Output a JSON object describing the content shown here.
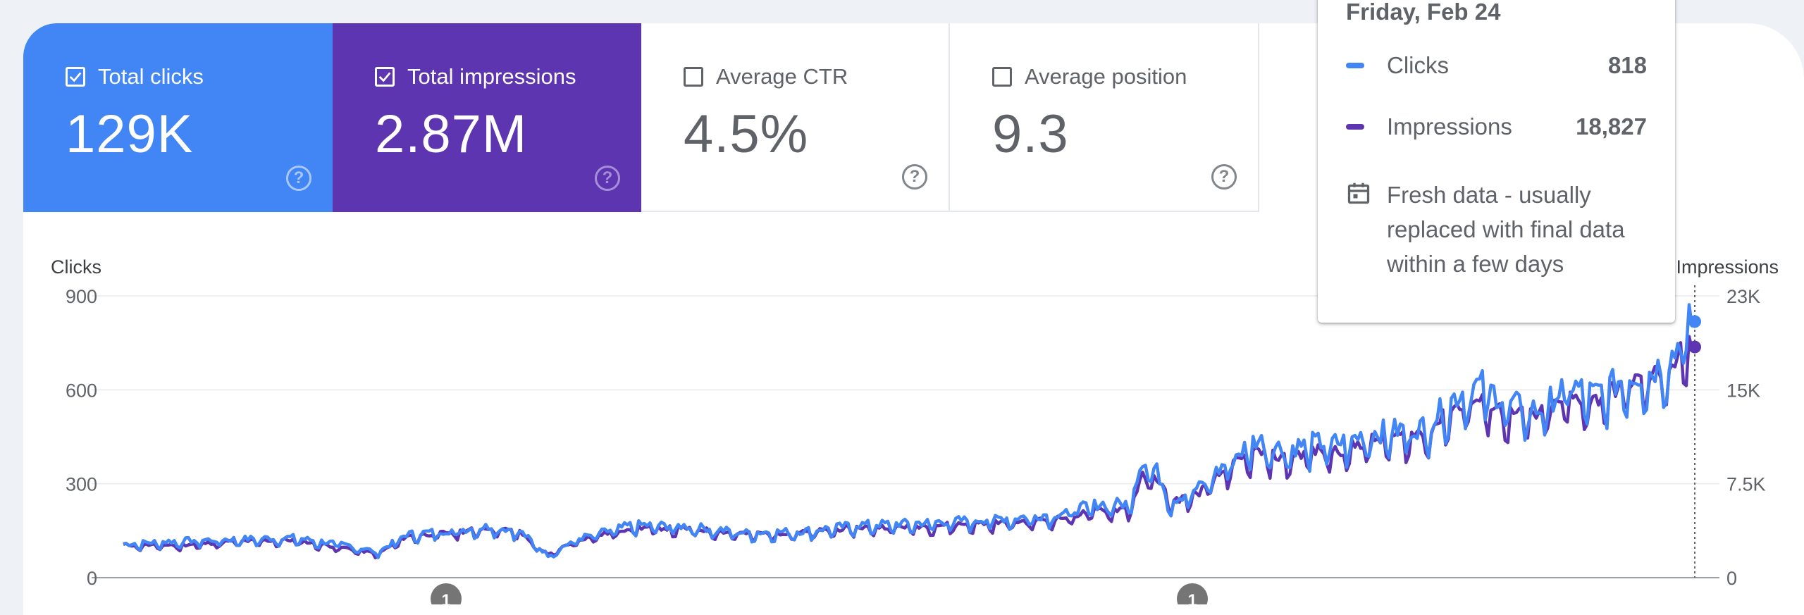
{
  "cards": [
    {
      "label": "Total clicks",
      "value": "129K",
      "checked": true,
      "color": "#4285f4"
    },
    {
      "label": "Total impressions",
      "value": "2.87M",
      "checked": true,
      "color": "#5e35b1"
    },
    {
      "label": "Average CTR",
      "value": "4.5%",
      "checked": false
    },
    {
      "label": "Average position",
      "value": "9.3",
      "checked": false
    }
  ],
  "help_icon": "?",
  "chart_data": {
    "type": "line",
    "left_axis": {
      "title": "Clicks",
      "ticks": [
        "900",
        "600",
        "300",
        "0"
      ],
      "range": [
        0,
        900
      ]
    },
    "right_axis": {
      "title": "Impressions",
      "ticks": [
        "23K",
        "15K",
        "7.5K",
        "0"
      ],
      "range": [
        0,
        23000
      ]
    },
    "grid": true,
    "series": [
      {
        "name": "Clicks",
        "color": "#4285f4",
        "axis": "left",
        "keypoints": [
          [
            0,
            105
          ],
          [
            20,
            115
          ],
          [
            40,
            120
          ],
          [
            60,
            125
          ],
          [
            80,
            100
          ],
          [
            90,
            80
          ],
          [
            100,
            135
          ],
          [
            120,
            150
          ],
          [
            130,
            160
          ],
          [
            140,
            145
          ],
          [
            150,
            70
          ],
          [
            160,
            120
          ],
          [
            180,
            165
          ],
          [
            200,
            160
          ],
          [
            220,
            140
          ],
          [
            240,
            145
          ],
          [
            260,
            165
          ],
          [
            280,
            170
          ],
          [
            300,
            180
          ],
          [
            320,
            190
          ],
          [
            330,
            200
          ],
          [
            345,
            230
          ],
          [
            355,
            230
          ],
          [
            360,
            370
          ],
          [
            365,
            330
          ],
          [
            370,
            240
          ],
          [
            380,
            280
          ],
          [
            390,
            360
          ],
          [
            400,
            430
          ],
          [
            410,
            400
          ],
          [
            420,
            420
          ],
          [
            430,
            420
          ],
          [
            440,
            450
          ],
          [
            460,
            470
          ],
          [
            470,
            560
          ],
          [
            475,
            590
          ],
          [
            480,
            600
          ],
          [
            490,
            540
          ],
          [
            500,
            520
          ],
          [
            510,
            600
          ],
          [
            520,
            570
          ],
          [
            530,
            620
          ],
          [
            540,
            640
          ],
          [
            548,
            700
          ],
          [
            550,
            750
          ],
          [
            555,
            818
          ]
        ]
      },
      {
        "name": "Impressions",
        "color": "#5e35b1",
        "axis": "right",
        "keypoints": [
          [
            0,
            2600
          ],
          [
            20,
            2600
          ],
          [
            40,
            2900
          ],
          [
            60,
            3000
          ],
          [
            80,
            2300
          ],
          [
            90,
            1900
          ],
          [
            100,
            3300
          ],
          [
            120,
            3700
          ],
          [
            130,
            4000
          ],
          [
            140,
            3600
          ],
          [
            150,
            1800
          ],
          [
            160,
            3000
          ],
          [
            180,
            4000
          ],
          [
            200,
            3900
          ],
          [
            220,
            3500
          ],
          [
            240,
            3600
          ],
          [
            260,
            4000
          ],
          [
            280,
            4100
          ],
          [
            300,
            4300
          ],
          [
            320,
            4500
          ],
          [
            330,
            4700
          ],
          [
            345,
            5400
          ],
          [
            355,
            5500
          ],
          [
            360,
            8000
          ],
          [
            365,
            8000
          ],
          [
            370,
            6000
          ],
          [
            380,
            6800
          ],
          [
            390,
            8700
          ],
          [
            400,
            10000
          ],
          [
            410,
            9500
          ],
          [
            420,
            10100
          ],
          [
            430,
            10100
          ],
          [
            440,
            10900
          ],
          [
            460,
            11500
          ],
          [
            470,
            13500
          ],
          [
            475,
            14000
          ],
          [
            480,
            14000
          ],
          [
            490,
            13000
          ],
          [
            500,
            12900
          ],
          [
            510,
            14300
          ],
          [
            520,
            14100
          ],
          [
            530,
            15400
          ],
          [
            540,
            16000
          ],
          [
            548,
            17000
          ],
          [
            550,
            18000
          ],
          [
            555,
            18827
          ]
        ]
      }
    ],
    "annotations": [
      "1",
      "1"
    ]
  },
  "tooltip": {
    "date": "Friday, Feb 24",
    "rows": [
      {
        "label": "Clicks",
        "value": "818",
        "color": "#4285f4"
      },
      {
        "label": "Impressions",
        "value": "18,827",
        "color": "#5e35b1"
      }
    ],
    "fresh_icon": "calendar-icon",
    "fresh_text": "Fresh data - usually replaced with final data within a few days"
  }
}
